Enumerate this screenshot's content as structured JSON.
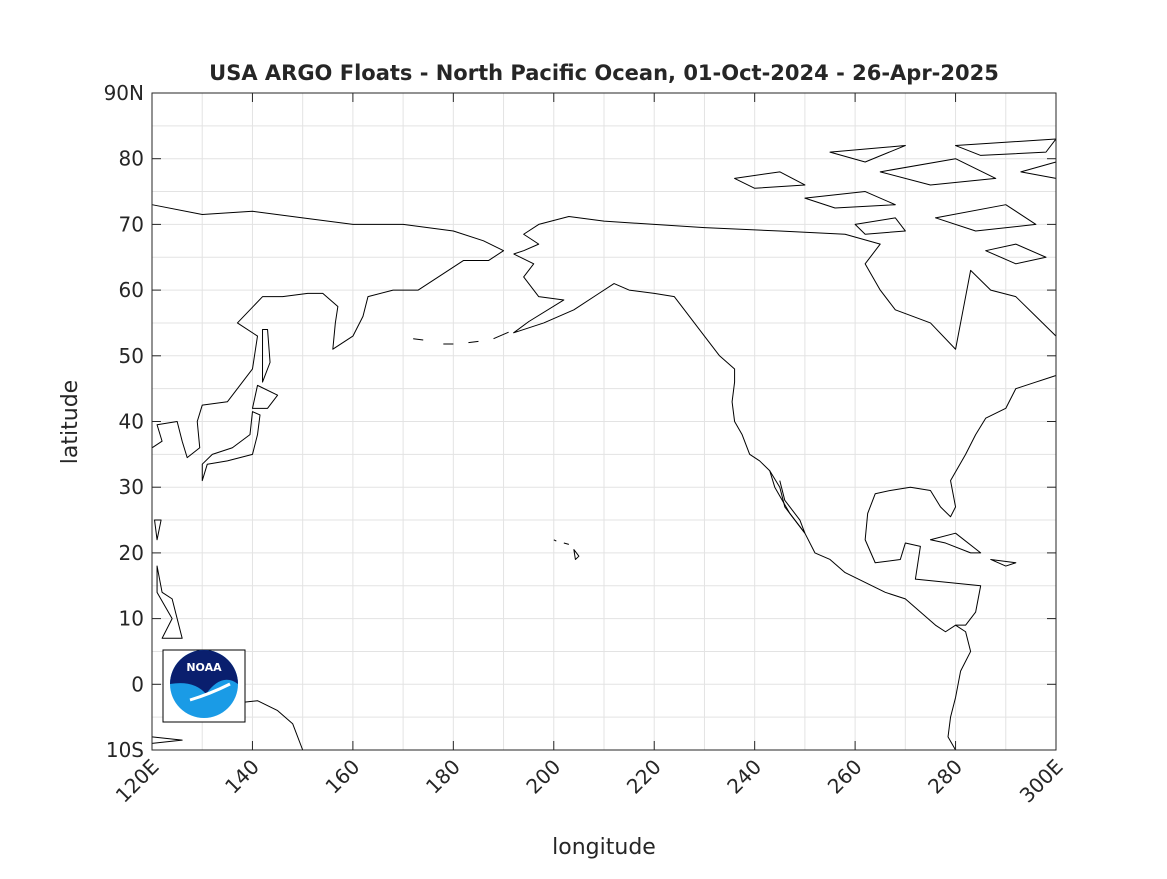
{
  "chart_data": {
    "type": "map",
    "title": "USA ARGO Floats - North Pacific Ocean, 01-Oct-2024 - 26-Apr-2025",
    "xlabel": "longitude",
    "ylabel": "latitude",
    "xlim": [
      120,
      300
    ],
    "ylim": [
      -10,
      90
    ],
    "xticks": [
      {
        "value": 120,
        "label": "120E"
      },
      140,
      160,
      180,
      200,
      220,
      240,
      260,
      280,
      {
        "value": 300,
        "label": "300E"
      }
    ],
    "yticks": [
      {
        "value": -10,
        "label": "10S"
      },
      0,
      10,
      20,
      30,
      40,
      50,
      60,
      70,
      80,
      {
        "value": 90,
        "label": "90N"
      }
    ],
    "xminorticks": [
      130,
      150,
      170,
      190,
      210,
      230,
      250,
      270,
      290
    ],
    "yminorticks": [
      -5,
      5,
      15,
      25,
      35,
      45,
      55,
      65,
      75,
      85
    ],
    "grid": true,
    "logo_text": "NOAA"
  }
}
